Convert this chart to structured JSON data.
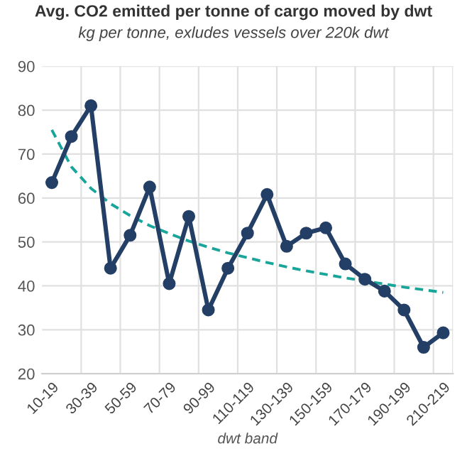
{
  "chart_data": {
    "type": "line",
    "title": "Avg. CO2 emitted per tonne of cargo moved by dwt",
    "subtitle": "kg per tonne, exludes vessels over 220k dwt",
    "xlabel": "dwt band",
    "categories": [
      "10-19",
      null,
      "30-39",
      null,
      "50-59",
      null,
      "70-79",
      null,
      "90-99",
      null,
      "110-119",
      null,
      "130-139",
      null,
      "150-159",
      null,
      "170-179",
      null,
      "190-199",
      null,
      "210-219"
    ],
    "series": [
      {
        "color": "#243f66",
        "marker": "circle",
        "line_style": "solid",
        "values": [
          63.5,
          74,
          81,
          44,
          51.5,
          62.5,
          40.5,
          55.8,
          34.5,
          44,
          52,
          60.8,
          49,
          52,
          53.2,
          45,
          41.5,
          38.8,
          34.5,
          26,
          29.3
        ]
      },
      {
        "color": "#1aa59a",
        "marker": "none",
        "line_style": "dashed",
        "values": [
          75.5,
          67.1,
          62.2,
          58.7,
          56.0,
          53.7,
          51.9,
          50.2,
          48.8,
          47.5,
          46.4,
          45.3,
          44.3,
          43.4,
          42.6,
          41.8,
          41.1,
          40.4,
          39.7,
          39.1,
          38.5
        ]
      }
    ],
    "ylim": [
      20,
      90
    ],
    "yticks": [
      20,
      30,
      40,
      50,
      60,
      70,
      80,
      90
    ],
    "grid": true,
    "legend": false
  }
}
